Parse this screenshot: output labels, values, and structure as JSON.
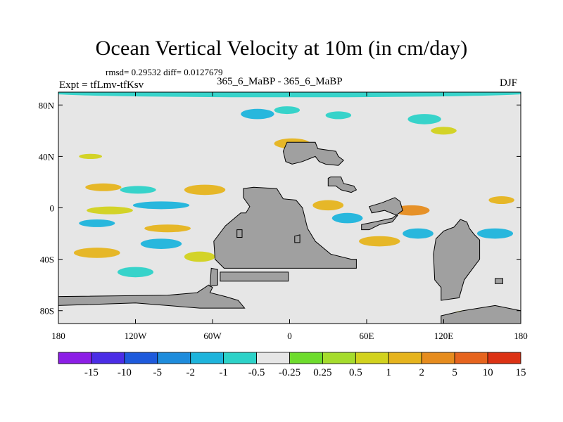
{
  "title": "Ocean Vertical Velocity at 10m (in cm/day)",
  "stats": "rmsd= 0.29532 diff= 0.0127679",
  "experiment": "Expt = tfLmv-tfKsv",
  "runs": "365_6_MaBP - 365_6_MaBP",
  "season": "DJF",
  "colors": {
    "land": "#a0a0a0",
    "background": "#e6e6e6",
    "palette": [
      "#8c1ee6",
      "#4b2de6",
      "#1e5adc",
      "#1e8cdc",
      "#1eb4dc",
      "#2dd2c8",
      "#e6e6e6",
      "#6edc2d",
      "#a5dc2d",
      "#d2d21e",
      "#e6b41e",
      "#e68c1e",
      "#e6641e",
      "#dc3214"
    ]
  },
  "chart_data": {
    "type": "heatmap",
    "title": "Ocean Vertical Velocity at 10m (in cm/day)",
    "variable": "Ocean vertical velocity difference",
    "units": "cm/day",
    "xlim": [
      -180,
      180
    ],
    "ylim": [
      -90,
      90
    ],
    "x_ticks": [
      {
        "value": -180,
        "label": "180"
      },
      {
        "value": -120,
        "label": "120W"
      },
      {
        "value": -60,
        "label": "60W"
      },
      {
        "value": 0,
        "label": "0"
      },
      {
        "value": 60,
        "label": "60E"
      },
      {
        "value": 120,
        "label": "120E"
      },
      {
        "value": 180,
        "label": "180"
      }
    ],
    "y_ticks": [
      {
        "value": 80,
        "label": "80N"
      },
      {
        "value": 40,
        "label": "40N"
      },
      {
        "value": 0,
        "label": "0"
      },
      {
        "value": -40,
        "label": "40S"
      },
      {
        "value": -80,
        "label": "80S"
      }
    ],
    "colorbar": {
      "levels": [
        "-15",
        "-10",
        "-5",
        "-2",
        "-1",
        "-0.5",
        "-0.25",
        "0.25",
        "0.5",
        "1",
        "2",
        "5",
        "10",
        "15"
      ]
    },
    "land_polygons": [
      {
        "name": "north-atlantic-land",
        "lonlat": [
          [
            -5,
            44
          ],
          [
            -2,
            51
          ],
          [
            20,
            51
          ],
          [
            22,
            46
          ],
          [
            36,
            44
          ],
          [
            38,
            40
          ],
          [
            42,
            37
          ],
          [
            38,
            33
          ],
          [
            28,
            34
          ],
          [
            23,
            36
          ],
          [
            20,
            40
          ],
          [
            15,
            38
          ],
          [
            10,
            36
          ],
          [
            2,
            34
          ],
          [
            -3,
            36
          ]
        ]
      },
      {
        "name": "anatolian-land",
        "lonlat": [
          [
            30,
            23
          ],
          [
            32,
            24
          ],
          [
            40,
            24
          ],
          [
            42,
            19
          ],
          [
            50,
            17
          ],
          [
            52,
            14
          ],
          [
            48,
            12
          ],
          [
            40,
            14
          ],
          [
            36,
            17
          ],
          [
            30,
            17
          ]
        ]
      },
      {
        "name": "african-landmass",
        "lonlat": [
          [
            -36,
            15
          ],
          [
            -28,
            16
          ],
          [
            -10,
            15
          ],
          [
            -5,
            7
          ],
          [
            5,
            6
          ],
          [
            10,
            0
          ],
          [
            12,
            -8
          ],
          [
            14,
            -16
          ],
          [
            20,
            -26
          ],
          [
            32,
            -36
          ],
          [
            48,
            -40
          ],
          [
            52,
            -40
          ],
          [
            52,
            -47
          ],
          [
            -51,
            -47
          ],
          [
            -58,
            -40
          ],
          [
            -59,
            -26
          ],
          [
            -50,
            -14
          ],
          [
            -38,
            -4
          ],
          [
            -34,
            -4
          ],
          [
            -31,
            1
          ],
          [
            -36,
            8
          ]
        ]
      },
      {
        "name": "south-atlantic-island",
        "lonlat": [
          [
            -13,
            -50
          ],
          [
            -1,
            -50
          ],
          [
            -1,
            -57
          ],
          [
            -54,
            -57
          ],
          [
            -54,
            -50
          ]
        ]
      },
      {
        "name": "antarctic-western-shelf",
        "lonlat": [
          [
            -180,
            -69
          ],
          [
            -95,
            -68
          ],
          [
            -72,
            -66
          ],
          [
            -63,
            -60
          ],
          [
            -60,
            -62
          ],
          [
            -62,
            -66
          ],
          [
            -50,
            -69
          ],
          [
            -40,
            -72
          ],
          [
            -35,
            -78
          ],
          [
            -70,
            -78
          ],
          [
            -120,
            -74
          ],
          [
            -180,
            -76
          ]
        ]
      },
      {
        "name": "south-american-arm",
        "lonlat": [
          [
            -61,
            -47
          ],
          [
            -56,
            -48
          ],
          [
            -56,
            -60
          ],
          [
            -62,
            -61
          ]
        ]
      },
      {
        "name": "small-islands-a",
        "lonlat": [
          [
            -41,
            -17
          ],
          [
            -37,
            -17
          ],
          [
            -37,
            -23
          ],
          [
            -41,
            -23
          ]
        ]
      },
      {
        "name": "small-islands-b",
        "lonlat": [
          [
            4,
            -22
          ],
          [
            8,
            -21
          ],
          [
            8,
            -27
          ],
          [
            4,
            -27
          ]
        ]
      },
      {
        "name": "eastern-peninsula",
        "lonlat": [
          [
            62,
            1
          ],
          [
            72,
            4
          ],
          [
            82,
            8
          ],
          [
            86,
            5
          ],
          [
            88,
            -2
          ],
          [
            80,
            -8
          ],
          [
            66,
            -11
          ],
          [
            56,
            -13
          ],
          [
            56,
            -17
          ],
          [
            62,
            -17
          ],
          [
            70,
            -13
          ],
          [
            80,
            -11
          ],
          [
            84,
            -6
          ],
          [
            74,
            -2
          ],
          [
            64,
            -4
          ]
        ]
      },
      {
        "name": "eastern-continent",
        "lonlat": [
          [
            112,
            -36
          ],
          [
            114,
            -24
          ],
          [
            120,
            -18
          ],
          [
            128,
            -15
          ],
          [
            133,
            -9
          ],
          [
            138,
            -11
          ],
          [
            140,
            -16
          ],
          [
            144,
            -21
          ],
          [
            148,
            -25
          ],
          [
            148,
            -40
          ],
          [
            142,
            -48
          ],
          [
            136,
            -56
          ],
          [
            132,
            -70
          ],
          [
            118,
            -72
          ],
          [
            118,
            -62
          ],
          [
            113,
            -56
          ]
        ]
      },
      {
        "name": "antarctic-east",
        "lonlat": [
          [
            118,
            -84
          ],
          [
            135,
            -80
          ],
          [
            160,
            -76
          ],
          [
            180,
            -80
          ],
          [
            180,
            -90
          ],
          [
            118,
            -90
          ]
        ]
      },
      {
        "name": "small-islands-c",
        "lonlat": [
          [
            160,
            -55
          ],
          [
            166,
            -55
          ],
          [
            166,
            -59
          ],
          [
            160,
            -59
          ]
        ]
      }
    ],
    "anomaly_blobs": [
      {
        "name": "arctic-band",
        "lon": 0,
        "lat": 89,
        "rx": 185,
        "ry": 3,
        "level": "-0.5"
      },
      {
        "name": "north-pacific-cool-1",
        "lon": -25,
        "lat": 73,
        "rx": 13,
        "ry": 4,
        "level": "-1"
      },
      {
        "name": "north-pacific-cool-2",
        "lon": -2,
        "lat": 76,
        "rx": 10,
        "ry": 3,
        "level": "-0.5"
      },
      {
        "name": "north-central-cool",
        "lon": 38,
        "lat": 72,
        "rx": 10,
        "ry": 3,
        "level": "-0.5"
      },
      {
        "name": "north-east-cool",
        "lon": 105,
        "lat": 69,
        "rx": 13,
        "ry": 4,
        "level": "-0.5"
      },
      {
        "name": "north-warm-1",
        "lon": 2,
        "lat": 50,
        "rx": 14,
        "ry": 4,
        "level": "1"
      },
      {
        "name": "north-warm-2",
        "lon": 120,
        "lat": 60,
        "rx": 10,
        "ry": 3,
        "level": "0.5"
      },
      {
        "name": "west-warm-1",
        "lon": -155,
        "lat": 40,
        "rx": 9,
        "ry": 2,
        "level": "0.5"
      },
      {
        "name": "equatorial-warm-1",
        "lon": -145,
        "lat": 16,
        "rx": 14,
        "ry": 3,
        "level": "1"
      },
      {
        "name": "equatorial-cool-1",
        "lon": -118,
        "lat": 14,
        "rx": 14,
        "ry": 3,
        "level": "-0.5"
      },
      {
        "name": "equatorial-warm-2",
        "lon": -66,
        "lat": 14,
        "rx": 16,
        "ry": 4,
        "level": "1"
      },
      {
        "name": "equatorial-cool-2",
        "lon": -100,
        "lat": 2,
        "rx": 22,
        "ry": 3,
        "level": "-1"
      },
      {
        "name": "equatorial-warm-3",
        "lon": -140,
        "lat": -2,
        "rx": 18,
        "ry": 3,
        "level": "0.5"
      },
      {
        "name": "equatorial-cool-3",
        "lon": -150,
        "lat": -12,
        "rx": 14,
        "ry": 3,
        "level": "-1"
      },
      {
        "name": "equatorial-warm-4",
        "lon": -95,
        "lat": -16,
        "rx": 18,
        "ry": 3,
        "level": "1"
      },
      {
        "name": "south-warm-1",
        "lon": -150,
        "lat": -35,
        "rx": 18,
        "ry": 4,
        "level": "1"
      },
      {
        "name": "south-cool-1",
        "lon": -100,
        "lat": -28,
        "rx": 16,
        "ry": 4,
        "level": "-1"
      },
      {
        "name": "south-warm-2",
        "lon": -70,
        "lat": -38,
        "rx": 12,
        "ry": 4,
        "level": "0.5"
      },
      {
        "name": "south-cool-2",
        "lon": -120,
        "lat": -50,
        "rx": 14,
        "ry": 4,
        "level": "-0.5"
      },
      {
        "name": "central-warm-1",
        "lon": 30,
        "lat": 2,
        "rx": 12,
        "ry": 4,
        "level": "1"
      },
      {
        "name": "central-cool-1",
        "lon": 45,
        "lat": -8,
        "rx": 12,
        "ry": 4,
        "level": "-1"
      },
      {
        "name": "central-warm-2",
        "lon": 95,
        "lat": -2,
        "rx": 14,
        "ry": 4,
        "level": "2"
      },
      {
        "name": "central-cool-2",
        "lon": 100,
        "lat": -20,
        "rx": 12,
        "ry": 4,
        "level": "-1"
      },
      {
        "name": "central-warm-3",
        "lon": 70,
        "lat": -26,
        "rx": 16,
        "ry": 4,
        "level": "1"
      },
      {
        "name": "east-cool-1",
        "lon": 160,
        "lat": -20,
        "rx": 14,
        "ry": 4,
        "level": "-1"
      },
      {
        "name": "east-warm-1",
        "lon": 165,
        "lat": 6,
        "rx": 10,
        "ry": 3,
        "level": "1"
      },
      {
        "name": "southern-ocean-warm",
        "lon": 150,
        "lat": -82,
        "rx": 22,
        "ry": 3,
        "level": "0.5"
      }
    ]
  }
}
